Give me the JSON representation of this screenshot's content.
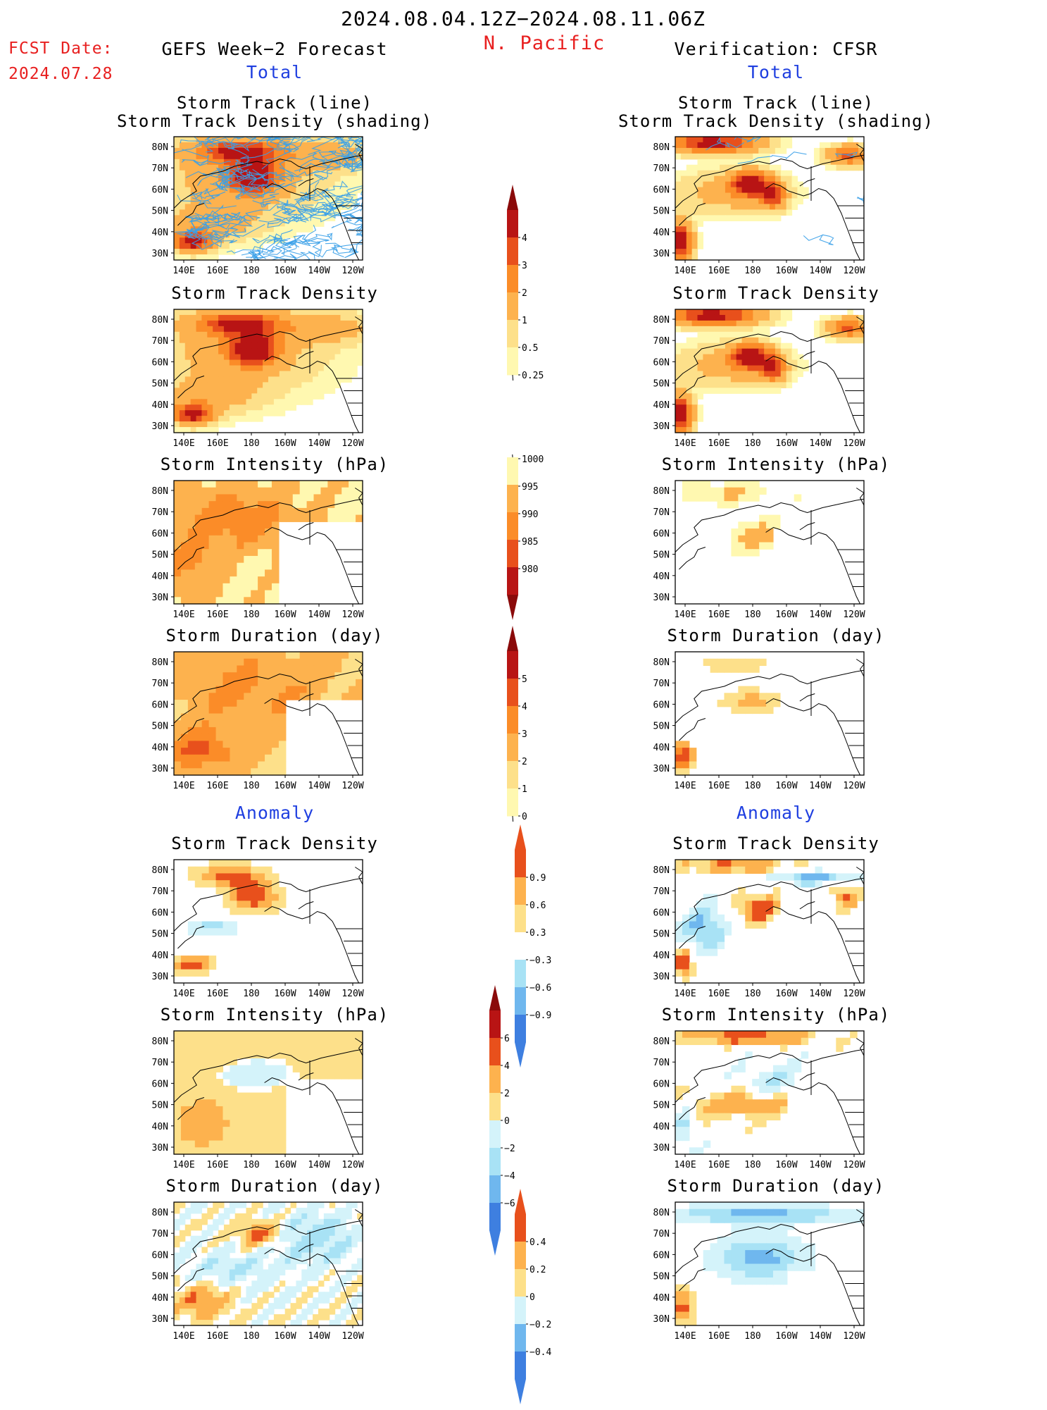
{
  "header": {
    "date_range": "2024.08.04.12Z−2024.08.11.06Z",
    "region": "N. Pacific",
    "fcst_label": "FCST Date:",
    "fcst_date": "2024.07.28",
    "left_title": "GEFS Week−2 Forecast",
    "right_title": "Verification: CFSR"
  },
  "sections": {
    "total": "Total",
    "anomaly": "Anomaly"
  },
  "axes": {
    "lat_labels": [
      "80N",
      "70N",
      "60N",
      "50N",
      "40N",
      "30N"
    ],
    "lon_labels": [
      "140E",
      "160E",
      "180",
      "160W",
      "140W",
      "120W"
    ]
  },
  "panels": {
    "track_title_1": "Storm Track (line)",
    "track_title_2": "Storm Track Density (shading)",
    "density": "Storm Track Density",
    "intensity": "Storm Intensity (hPa)",
    "duration": "Storm Duration (day)",
    "anom_density": "Storm Track Density",
    "anom_intensity": "Storm Intensity (hPa)",
    "anom_duration": "Storm Duration (day)"
  },
  "colorbars": {
    "density": {
      "labels": [
        "0.25",
        "0.5",
        "1",
        "2",
        "3",
        "4"
      ]
    },
    "intensity": {
      "labels": [
        "1000",
        "995",
        "990",
        "985",
        "980"
      ]
    },
    "duration": {
      "labels": [
        "0",
        "1",
        "2",
        "3",
        "4",
        "5"
      ]
    },
    "anom_density": {
      "labels": [
        "0.9",
        "0.6",
        "0.3",
        "−0.3",
        "−0.6",
        "−0.9"
      ]
    },
    "anom_intensity": {
      "labels": [
        "6",
        "4",
        "2",
        "0",
        "−2",
        "−4",
        "−6"
      ]
    },
    "anom_duration": {
      "labels": [
        "0.4",
        "0.2",
        "0",
        "−0.2",
        "−0.4"
      ]
    }
  },
  "colors": {
    "warm": [
      "#fff8b0",
      "#fde08a",
      "#fdb24e",
      "#fb8c28",
      "#e8501c",
      "#b81414",
      "#8a0a0a"
    ],
    "cool": [
      "#d4f3fa",
      "#a8e2f5",
      "#6fb7ee",
      "#3e7fe0",
      "#1a50c8"
    ],
    "track_line": "#3aa0e8",
    "title_red": "#e81f1f",
    "title_blue": "#1f3fe0"
  }
}
